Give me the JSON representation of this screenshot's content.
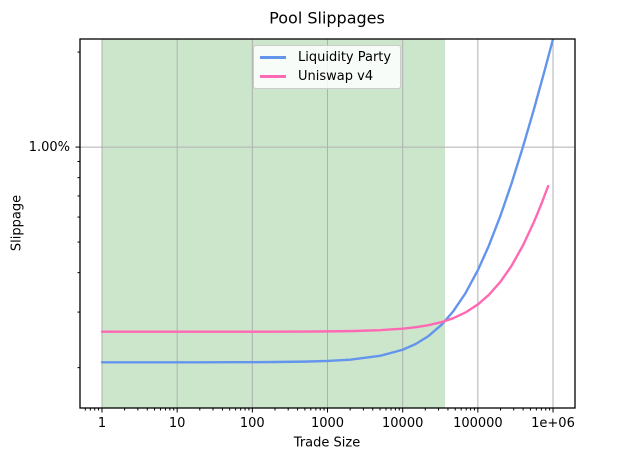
{
  "chart_data": {
    "type": "line",
    "title": "Pool Slippages",
    "xlabel": "Trade Size",
    "ylabel": "Slippage",
    "x_scale": "log",
    "y_scale": "log",
    "xlim": [
      0.51,
      1960000
    ],
    "ylim_pct": [
      0.149,
      2.2
    ],
    "x_ticks": [
      1,
      10,
      100,
      1000,
      10000,
      100000,
      1000000
    ],
    "x_tick_labels": [
      "1",
      "10",
      "100",
      "1000",
      "10000",
      "100000",
      "1e+06"
    ],
    "y_ticks_pct": [
      1.0
    ],
    "y_tick_labels": [
      "1.00%"
    ],
    "grid": true,
    "grid_color": "#b0b0b0",
    "spine_color": "#000000",
    "legend_position": "upper center",
    "highlight_band": {
      "x_start": 1,
      "x_end": 36600,
      "color": "rgba(0,128,0,0.2)"
    },
    "series": [
      {
        "name": "Liquidity Party",
        "color": "#6495ED",
        "points": [
          [
            1,
            0.208
          ],
          [
            2,
            0.208
          ],
          [
            5,
            0.208
          ],
          [
            10,
            0.208
          ],
          [
            20,
            0.208
          ],
          [
            50,
            0.2081
          ],
          [
            100,
            0.2082
          ],
          [
            200,
            0.2084
          ],
          [
            500,
            0.209
          ],
          [
            1000,
            0.21
          ],
          [
            2000,
            0.212
          ],
          [
            5000,
            0.218
          ],
          [
            10000,
            0.2279
          ],
          [
            15000,
            0.2379
          ],
          [
            22000,
            0.2518
          ],
          [
            33000,
            0.2737
          ],
          [
            47000,
            0.3016
          ],
          [
            68000,
            0.3435
          ],
          [
            100000,
            0.4072
          ],
          [
            140000,
            0.4869
          ],
          [
            200000,
            0.6065
          ],
          [
            280000,
            0.7659
          ],
          [
            400000,
            1.0049
          ],
          [
            560000,
            1.3237
          ],
          [
            780000,
            1.762
          ],
          [
            1000000,
            2.2003
          ]
        ]
      },
      {
        "name": "Uniswap v4",
        "color": "#FF69B4",
        "points": [
          [
            1,
            0.26
          ],
          [
            2,
            0.26
          ],
          [
            5,
            0.26
          ],
          [
            10,
            0.26
          ],
          [
            20,
            0.26
          ],
          [
            50,
            0.26
          ],
          [
            100,
            0.2601
          ],
          [
            200,
            0.2601
          ],
          [
            500,
            0.2603
          ],
          [
            1000,
            0.2606
          ],
          [
            2000,
            0.2611
          ],
          [
            5000,
            0.2629
          ],
          [
            10000,
            0.2657
          ],
          [
            15000,
            0.2686
          ],
          [
            22000,
            0.2726
          ],
          [
            33000,
            0.2789
          ],
          [
            47000,
            0.2869
          ],
          [
            68000,
            0.2989
          ],
          [
            100000,
            0.3172
          ],
          [
            140000,
            0.3401
          ],
          [
            200000,
            0.3744
          ],
          [
            280000,
            0.4202
          ],
          [
            400000,
            0.4888
          ],
          [
            560000,
            0.5804
          ],
          [
            700000,
            0.6605
          ],
          [
            860000,
            0.752
          ]
        ]
      }
    ]
  }
}
